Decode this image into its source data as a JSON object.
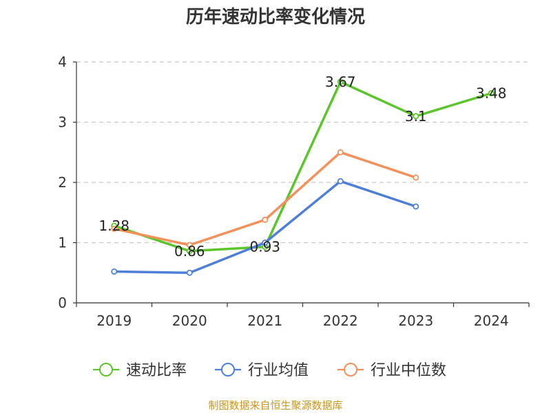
{
  "chart_data": {
    "type": "line",
    "title": "历年速动比率变化情况",
    "categories": [
      "2019",
      "2020",
      "2021",
      "2022",
      "2023",
      "2024"
    ],
    "ylim": [
      0,
      4
    ],
    "yticks": [
      "0",
      "1",
      "2",
      "3",
      "4"
    ],
    "grid": true,
    "legend_position": "bottom",
    "series": [
      {
        "name": "速动比率",
        "color": "#5cc52c",
        "values": [
          1.28,
          0.86,
          0.93,
          3.67,
          3.1,
          3.48
        ],
        "labels": [
          "1.28",
          "0.86",
          "0.93",
          "3.67",
          "3.1",
          "3.48"
        ],
        "show_labels": true
      },
      {
        "name": "行业均值",
        "color": "#4e7fd8",
        "values": [
          0.52,
          0.5,
          1.0,
          2.02,
          1.6,
          null
        ],
        "show_labels": false
      },
      {
        "name": "行业中位数",
        "color": "#f5905a",
        "values": [
          1.23,
          0.96,
          1.38,
          2.5,
          2.08,
          null
        ],
        "show_labels": false
      }
    ]
  },
  "source_text": "制图数据来自恒生聚源数据库"
}
